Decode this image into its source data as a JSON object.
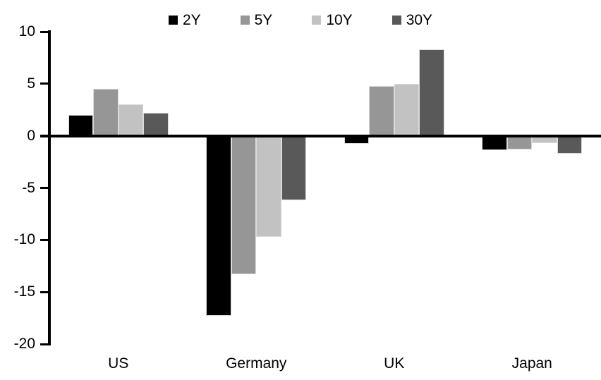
{
  "chart_data": {
    "type": "bar",
    "title": "",
    "categories": [
      "US",
      "Germany",
      "UK",
      "Japan"
    ],
    "series": [
      {
        "name": "2Y",
        "color": "#000000",
        "values": [
          2.0,
          -17.3,
          -0.8,
          -1.4
        ]
      },
      {
        "name": "5Y",
        "color": "#969696",
        "values": [
          4.5,
          -13.3,
          4.8,
          -1.3
        ]
      },
      {
        "name": "10Y",
        "color": "#c2c2c2",
        "values": [
          3.0,
          -9.7,
          5.0,
          -0.7
        ]
      },
      {
        "name": "30Y",
        "color": "#595959",
        "values": [
          2.2,
          -6.2,
          8.3,
          -1.7
        ]
      }
    ],
    "ylim": [
      -20,
      10
    ],
    "yticks": [
      10,
      5,
      0,
      -5,
      -10,
      -15,
      -20
    ],
    "grid": false,
    "legend_position": "top",
    "axis_color": "#000000",
    "bar_outline_color": "#dadada",
    "background_color": "#ffffff"
  }
}
